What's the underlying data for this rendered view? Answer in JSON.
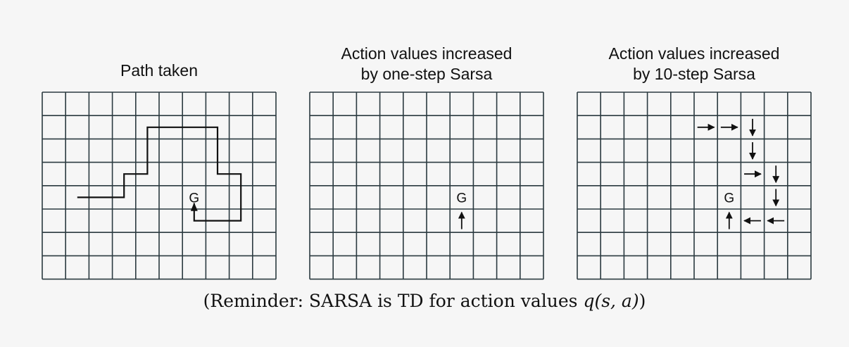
{
  "panels": [
    {
      "title_lines": [
        "Path taken"
      ]
    },
    {
      "title_lines": [
        "Action values increased",
        "by one-step Sarsa"
      ]
    },
    {
      "title_lines": [
        "Action values increased",
        "by 10-step Sarsa"
      ]
    }
  ],
  "grid": {
    "cols": 10,
    "rows": 8
  },
  "goal": {
    "label": "G",
    "col": 6,
    "row": 4
  },
  "path_taken": [
    [
      1.5,
      4.5
    ],
    [
      3.5,
      4.5
    ],
    [
      3.5,
      3.5
    ],
    [
      4.5,
      3.5
    ],
    [
      4.5,
      1.5
    ],
    [
      7.5,
      1.5
    ],
    [
      7.5,
      3.5
    ],
    [
      8.5,
      3.5
    ],
    [
      8.5,
      5.5
    ],
    [
      6.5,
      5.5
    ],
    [
      6.5,
      4.75
    ]
  ],
  "one_step_arrows": [
    {
      "col": 6,
      "row": 5,
      "dir": "up"
    }
  ],
  "ten_step_arrows": [
    {
      "col": 5,
      "row": 1,
      "dir": "right"
    },
    {
      "col": 6,
      "row": 1,
      "dir": "right"
    },
    {
      "col": 7,
      "row": 1,
      "dir": "down"
    },
    {
      "col": 7,
      "row": 2,
      "dir": "down"
    },
    {
      "col": 7,
      "row": 3,
      "dir": "right"
    },
    {
      "col": 8,
      "row": 3,
      "dir": "down"
    },
    {
      "col": 8,
      "row": 4,
      "dir": "down"
    },
    {
      "col": 8,
      "row": 5,
      "dir": "left"
    },
    {
      "col": 7,
      "row": 5,
      "dir": "left"
    },
    {
      "col": 6,
      "row": 5,
      "dir": "up"
    }
  ],
  "caption": {
    "prefix": "(Reminder: SARSA is TD for action values ",
    "math": "q(s, a)",
    "suffix": ")"
  },
  "colors": {
    "grid_line": "#2b3a40",
    "ink": "#111111"
  }
}
